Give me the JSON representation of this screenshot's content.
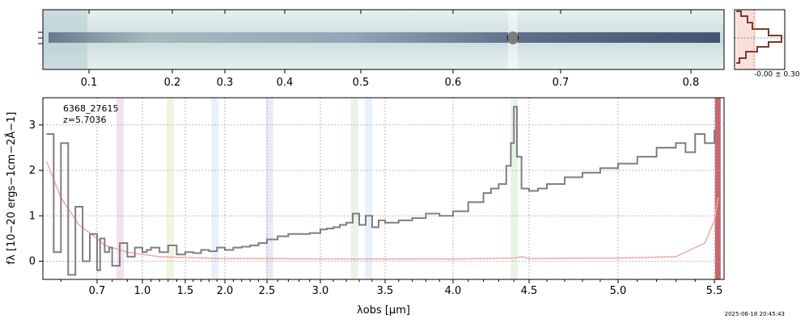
{
  "colors": {
    "spectrum": "#7f7f7f",
    "error": "#f4a6a6",
    "grid": "#a8a8a8",
    "img_bg": "#d9e6e6",
    "img_trace": "#2e3a5c",
    "line_bands": [
      "#e9c9e3",
      "#e3ecc8",
      "#d6e6f5",
      "#dcd6ec",
      "#d3ead3",
      "#d6e3f5",
      "#d3ead3",
      "#c2575f"
    ],
    "hist": "#7a3a2a",
    "hist_fill": "#f3c1b5"
  },
  "top_panel": {
    "tick_labels": [
      "0.1",
      "0.2",
      "0.3",
      "0.4",
      "0.5",
      "0.6",
      "0.7",
      "0.8"
    ],
    "tick_values": [
      0.1,
      0.2,
      0.3,
      0.4,
      0.5,
      0.6,
      0.7,
      0.8
    ],
    "xlim": [
      0.05,
      0.83
    ],
    "hist_label": "-0.00 ± 0.30"
  },
  "annotations": {
    "object_id": "6368_27615",
    "redshift": "z=5.7036",
    "timestamp": "2025-06-18 20:45:43"
  },
  "chart_data": {
    "type": "line",
    "xlabel": "λobs [μm]",
    "ylabel": "fλ [10−20 ergs−1cm−2Å−1]",
    "x_tick_labels": [
      "0.7",
      "1.0",
      "1.5",
      "2.0",
      "2.5",
      "3.0",
      "3.5",
      "4.0",
      "4.5",
      "5.0",
      "5.5"
    ],
    "x_tick_values": [
      0.7,
      1.0,
      1.5,
      2.0,
      2.5,
      3.0,
      3.5,
      4.0,
      4.5,
      5.0,
      5.5
    ],
    "y_tick_labels": [
      "0",
      "1",
      "2",
      "3"
    ],
    "y_tick_values": [
      0,
      1,
      2,
      3
    ],
    "ylim": [
      -0.4,
      3.6
    ],
    "xlim": [
      0.55,
      5.55
    ],
    "grid": true,
    "emission_line_bands_um": [
      0.85,
      1.32,
      1.87,
      2.52,
      3.26,
      3.37,
      4.4,
      5.52
    ],
    "series": [
      {
        "values_x": [
          0.56,
          0.58,
          0.6,
          0.62,
          0.64,
          0.66,
          0.68,
          0.7,
          0.72,
          0.75,
          0.78,
          0.8,
          0.85,
          0.9,
          0.95,
          1.0,
          1.05,
          1.1,
          1.2,
          1.3,
          1.4,
          1.5,
          1.6,
          1.7,
          1.8,
          1.9,
          2.0,
          2.1,
          2.2,
          2.3,
          2.4,
          2.5,
          2.6,
          2.7,
          2.8,
          2.9,
          3.0,
          3.05,
          3.1,
          3.15,
          3.2,
          3.25,
          3.3,
          3.35,
          3.4,
          3.45,
          3.5,
          3.6,
          3.7,
          3.8,
          3.9,
          4.0,
          4.1,
          4.2,
          4.25,
          4.3,
          4.35,
          4.38,
          4.4,
          4.42,
          4.45,
          4.5,
          4.55,
          4.6,
          4.7,
          4.8,
          4.9,
          5.0,
          5.1,
          5.2,
          5.3,
          5.35,
          5.4,
          5.45,
          5.5
        ],
        "values": [
          2.8,
          0.2,
          2.6,
          -0.3,
          1.2,
          0.0,
          0.6,
          -0.2,
          0.5,
          0.2,
          0.3,
          -0.1,
          0.4,
          0.1,
          0.3,
          0.2,
          0.25,
          0.3,
          0.2,
          0.35,
          0.15,
          0.2,
          0.18,
          0.25,
          0.22,
          0.3,
          0.25,
          0.3,
          0.32,
          0.35,
          0.4,
          0.48,
          0.55,
          0.6,
          0.6,
          0.62,
          0.7,
          0.72,
          0.75,
          0.8,
          0.85,
          1.05,
          0.8,
          1.0,
          0.75,
          0.9,
          0.85,
          0.9,
          0.95,
          1.05,
          1.0,
          1.1,
          1.3,
          1.5,
          1.6,
          1.7,
          2.1,
          2.6,
          3.4,
          2.3,
          1.6,
          1.55,
          1.6,
          1.7,
          1.85,
          1.95,
          2.05,
          2.15,
          2.3,
          2.5,
          2.6,
          2.4,
          2.8,
          2.6,
          2.9
        ]
      },
      {
        "values_x": [
          0.56,
          0.6,
          0.65,
          0.7,
          0.75,
          0.8,
          0.9,
          1.0,
          1.2,
          1.5,
          2.0,
          2.5,
          3.0,
          3.5,
          4.0,
          4.4,
          4.45,
          4.5,
          5.0,
          5.3,
          5.45,
          5.5,
          5.52
        ],
        "values": [
          2.2,
          1.4,
          0.8,
          0.5,
          0.35,
          0.3,
          0.2,
          0.15,
          0.1,
          0.08,
          0.06,
          0.06,
          0.05,
          0.05,
          0.05,
          0.07,
          0.1,
          0.06,
          0.07,
          0.1,
          0.4,
          0.9,
          1.4
        ]
      }
    ]
  }
}
